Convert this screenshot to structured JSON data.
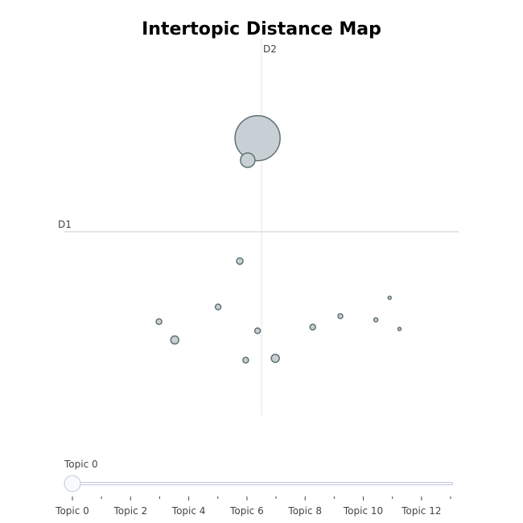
{
  "chart_data": {
    "type": "scatter",
    "title": "Intertopic Distance Map",
    "xlabel": "D1",
    "ylabel": "D2",
    "xlim": [
      -10,
      10
    ],
    "ylim": [
      -10,
      10
    ],
    "grid": false,
    "points": [
      {
        "x": -0.2,
        "y": 5.1,
        "size": 28
      },
      {
        "x": -0.7,
        "y": 3.9,
        "size": 9
      },
      {
        "x": -1.1,
        "y": -1.6,
        "size": 4
      },
      {
        "x": -2.2,
        "y": -4.1,
        "size": 3.5
      },
      {
        "x": -5.2,
        "y": -4.9,
        "size": 3.5
      },
      {
        "x": -4.4,
        "y": -5.9,
        "size": 5
      },
      {
        "x": -0.2,
        "y": -5.4,
        "size": 3.5
      },
      {
        "x": -0.8,
        "y": -7.0,
        "size": 3.5
      },
      {
        "x": 0.7,
        "y": -6.9,
        "size": 5
      },
      {
        "x": 2.6,
        "y": -5.2,
        "size": 3.5
      },
      {
        "x": 4.0,
        "y": -4.6,
        "size": 3
      },
      {
        "x": 5.8,
        "y": -4.8,
        "size": 2.5
      },
      {
        "x": 6.5,
        "y": -3.6,
        "size": 2
      },
      {
        "x": 7.0,
        "y": -5.3,
        "size": 2
      }
    ],
    "colors": {
      "marker_fill": "#c8d0d5",
      "marker_stroke": "#5f7272",
      "axis": "#cccccc",
      "slider": "#bec8d9"
    }
  },
  "slider": {
    "current_label": "Topic 0",
    "ticks": [
      "Topic 0",
      "Topic 2",
      "Topic 4",
      "Topic 6",
      "Topic 8",
      "Topic 10",
      "Topic 12"
    ],
    "value": 0,
    "max": 13
  }
}
